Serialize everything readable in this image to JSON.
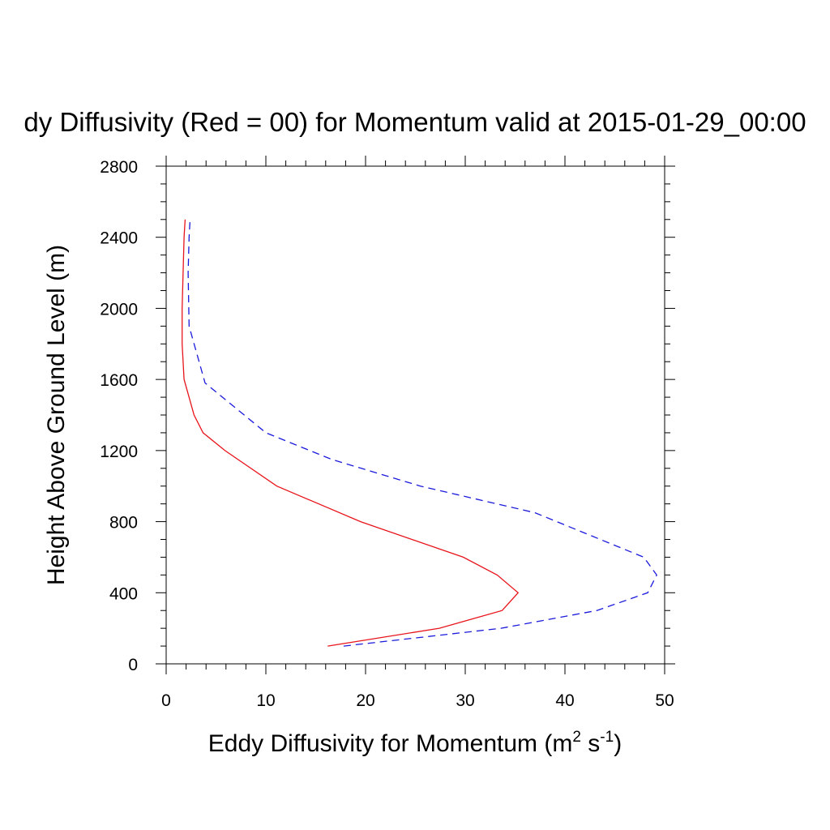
{
  "chart_data": {
    "type": "line",
    "title": "dy Diffusivity (Red = 00) for Momentum valid at 2015-01-29_00:00",
    "xlabel": "Eddy Diffusivity for Momentum (m",
    "xlabel_sup1": "2",
    "xlabel_mid": " s",
    "xlabel_sup2": "-1",
    "xlabel_end": ")",
    "ylabel": "Height Above Ground Level (m)",
    "xlim": [
      0,
      50
    ],
    "ylim": [
      0,
      2800
    ],
    "x_ticks": [
      0,
      10,
      20,
      30,
      40,
      50
    ],
    "y_ticks": [
      0,
      400,
      800,
      1200,
      1600,
      2000,
      2400,
      2800
    ],
    "grid": false,
    "series": [
      {
        "color": "#e8141b",
        "dash": "solid",
        "points": [
          [
            16.2,
            100
          ],
          [
            27.4,
            200
          ],
          [
            33.7,
            300
          ],
          [
            35.3,
            400
          ],
          [
            33.2,
            500
          ],
          [
            29.8,
            600
          ],
          [
            19.5,
            800
          ],
          [
            11.1,
            1000
          ],
          [
            5.9,
            1200
          ],
          [
            3.7,
            1300
          ],
          [
            2.8,
            1400
          ],
          [
            1.8,
            1600
          ],
          [
            1.6,
            1800
          ],
          [
            1.6,
            2000
          ],
          [
            1.7,
            2200
          ],
          [
            1.8,
            2400
          ],
          [
            1.9,
            2500
          ]
        ]
      },
      {
        "color": "#1a1adc",
        "dash": "dashed",
        "points": [
          [
            17.8,
            100
          ],
          [
            33.6,
            200
          ],
          [
            43.2,
            300
          ],
          [
            48.3,
            400
          ],
          [
            49.2,
            500
          ],
          [
            47.9,
            600
          ],
          [
            37.0,
            850
          ],
          [
            25.5,
            1000
          ],
          [
            16.6,
            1150
          ],
          [
            10.0,
            1300
          ],
          [
            3.9,
            1580
          ],
          [
            2.3,
            1900
          ],
          [
            2.2,
            2200
          ],
          [
            2.3,
            2400
          ],
          [
            2.4,
            2500
          ]
        ]
      }
    ]
  }
}
